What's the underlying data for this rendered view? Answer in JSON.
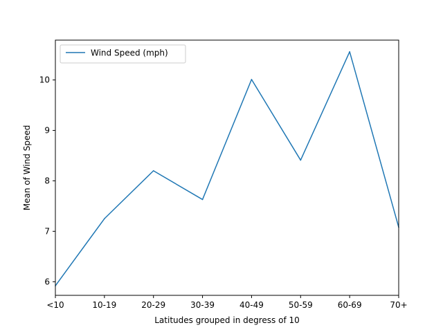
{
  "chart_data": {
    "type": "line",
    "title": "",
    "xlabel": "Latitudes grouped in degress of 10",
    "ylabel": "Mean of Wind Speed",
    "categories": [
      "<10",
      "10-19",
      "20-29",
      "30-39",
      "40-49",
      "50-59",
      "60-69",
      "70+"
    ],
    "series": [
      {
        "name": "Wind Speed (mph)",
        "values": [
          5.92,
          7.25,
          8.2,
          7.63,
          10.01,
          8.41,
          10.56,
          7.08
        ],
        "color": "#1f77b4"
      }
    ],
    "yticks": [
      6,
      7,
      8,
      9,
      10
    ],
    "ylim": [
      5.73,
      10.79
    ],
    "grid": false,
    "legend": "top-left"
  }
}
